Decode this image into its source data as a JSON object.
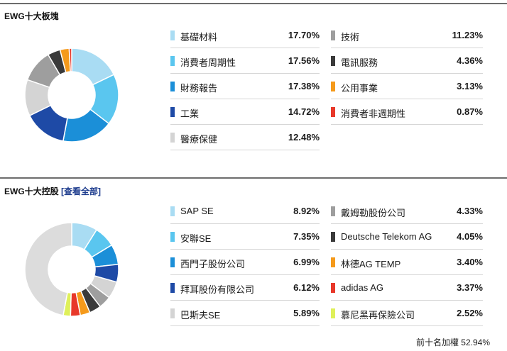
{
  "sectors": {
    "title": "EWG十大板塊",
    "items": [
      {
        "label": "基礎材料",
        "value": "17.70%",
        "pct": 17.7,
        "color": "#a9dcf3"
      },
      {
        "label": "消費者周期性",
        "value": "17.56%",
        "pct": 17.56,
        "color": "#5ac6ef"
      },
      {
        "label": "財務報告",
        "value": "17.38%",
        "pct": 17.38,
        "color": "#1b8fd8"
      },
      {
        "label": "工業",
        "value": "14.72%",
        "pct": 14.72,
        "color": "#1e4aa6"
      },
      {
        "label": "醫療保健",
        "value": "12.48%",
        "pct": 12.48,
        "color": "#d4d4d4"
      },
      {
        "label": "技術",
        "value": "11.23%",
        "pct": 11.23,
        "color": "#9e9e9e"
      },
      {
        "label": "電訊服務",
        "value": "4.36%",
        "pct": 4.36,
        "color": "#3a3a3a"
      },
      {
        "label": "公用事業",
        "value": "3.13%",
        "pct": 3.13,
        "color": "#f59a1b"
      },
      {
        "label": "消費者非週期性",
        "value": "0.87%",
        "pct": 0.87,
        "color": "#e8382a"
      }
    ]
  },
  "holdings": {
    "title": "EWG十大控股",
    "link_label": "[查看全部]",
    "items": [
      {
        "label": "SAP SE",
        "value": "8.92%",
        "pct": 8.92,
        "color": "#a9dcf3"
      },
      {
        "label": "安聯SE",
        "value": "7.35%",
        "pct": 7.35,
        "color": "#5ac6ef"
      },
      {
        "label": "西門子股份公司",
        "value": "6.99%",
        "pct": 6.99,
        "color": "#1b8fd8"
      },
      {
        "label": "拜耳股份有限公司",
        "value": "6.12%",
        "pct": 6.12,
        "color": "#1e4aa6"
      },
      {
        "label": "巴斯夫SE",
        "value": "5.89%",
        "pct": 5.89,
        "color": "#d4d4d4"
      },
      {
        "label": "戴姆勒股份公司",
        "value": "4.33%",
        "pct": 4.33,
        "color": "#9e9e9e"
      },
      {
        "label": "Deutsche Telekom AG",
        "value": "4.05%",
        "pct": 4.05,
        "color": "#3a3a3a"
      },
      {
        "label": "林德AG TEMP",
        "value": "3.40%",
        "pct": 3.4,
        "color": "#f59a1b"
      },
      {
        "label": "adidas AG",
        "value": "3.37%",
        "pct": 3.37,
        "color": "#e8382a"
      },
      {
        "label": "慕尼黑再保險公司",
        "value": "2.52%",
        "pct": 2.52,
        "color": "#dff05a"
      }
    ],
    "total_label": "前十名加權 52.94%",
    "remainder_color": "#dcdcdc"
  }
}
